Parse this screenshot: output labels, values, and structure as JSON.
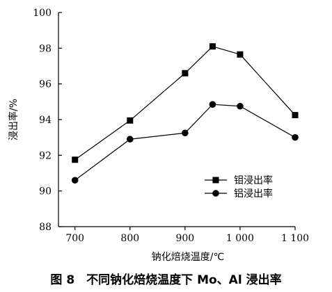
{
  "caption": "图 8　不同钠化焙烧温度下 Mo、Al 浸出率",
  "chart_data": {
    "type": "line",
    "xlabel": "钠化焙烧温度/℃",
    "ylabel": "浸出率/%",
    "x": [
      700,
      800,
      900,
      950,
      1000,
      1100
    ],
    "xticks": [
      700,
      800,
      900,
      1000,
      1100
    ],
    "xtick_labels": [
      "700",
      "800",
      "900",
      "1 000",
      "1 100"
    ],
    "xlim": [
      670,
      1100
    ],
    "yticks": [
      88,
      90,
      92,
      94,
      96,
      98,
      100
    ],
    "ytick_labels": [
      "88",
      "90",
      "92",
      "94",
      "96",
      "98",
      "100"
    ],
    "ylim": [
      88,
      100
    ],
    "grid": false,
    "legend_position": "lower-right",
    "series": [
      {
        "name": "钼浸出率",
        "marker": "square",
        "color": "#000000",
        "values": [
          91.75,
          93.95,
          96.6,
          98.1,
          97.65,
          94.25
        ]
      },
      {
        "name": "铝浸出率",
        "marker": "circle",
        "color": "#000000",
        "values": [
          90.6,
          92.9,
          93.25,
          94.85,
          94.75,
          93.0
        ]
      }
    ]
  }
}
